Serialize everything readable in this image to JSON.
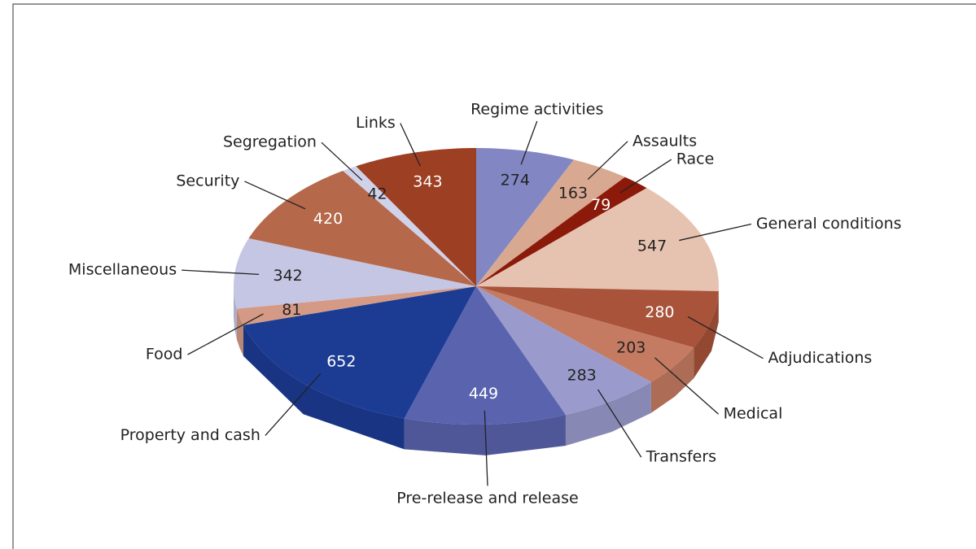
{
  "chart_data": {
    "type": "pie3d",
    "categories": [
      "Regime activities",
      "Assaults",
      "Race",
      "General conditions",
      "Adjudications",
      "Medical",
      "Transfers",
      "Pre-release and release",
      "Property and cash",
      "Food",
      "Miscellaneous",
      "Security",
      "Segregation",
      "Links"
    ],
    "values": [
      274,
      163,
      79,
      547,
      280,
      203,
      283,
      449,
      652,
      81,
      342,
      420,
      42,
      343
    ],
    "colors": [
      "#8287c4",
      "#d9a891",
      "#8b1a0a",
      "#e6c3b0",
      "#a8533a",
      "#c47b62",
      "#9a9bcc",
      "#5a63ae",
      "#1c3c94",
      "#d49a85",
      "#c5c6e3",
      "#b5684a",
      "#d0d2ea",
      "#9d3f22"
    ]
  }
}
